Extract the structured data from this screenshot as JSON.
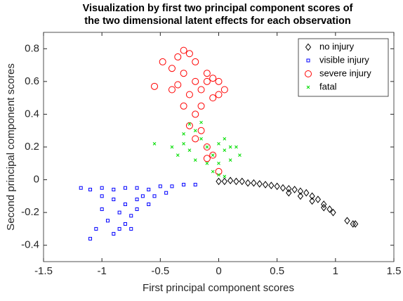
{
  "chart_data": {
    "type": "scatter",
    "title": [
      "Visualization by first two principal component scores of",
      "the two dimensional latent effects for each observation"
    ],
    "xlabel": "First principal component scores",
    "ylabel": "Second principal component scores",
    "xlim": [
      -1.5,
      1.5
    ],
    "ylim": [
      -0.5,
      0.9
    ],
    "xticks": [
      -1.5,
      -1,
      -0.5,
      0,
      0.5,
      1,
      1.5
    ],
    "yticks": [
      -0.4,
      -0.2,
      0,
      0.2,
      0.4,
      0.6,
      0.8
    ],
    "grid": false,
    "legend": "upper right",
    "series": [
      {
        "name": "no injury",
        "color": "#000000",
        "marker": "diamond",
        "x": [
          0.0,
          0.05,
          0.1,
          0.15,
          0.2,
          0.25,
          0.3,
          0.35,
          0.4,
          0.45,
          0.5,
          0.55,
          0.6,
          0.65,
          0.7,
          0.75,
          0.8,
          0.85,
          0.9,
          0.95,
          0.98,
          0.6,
          0.7,
          0.8,
          0.9,
          1.1,
          1.15,
          1.17
        ],
        "y": [
          -0.01,
          -0.01,
          -0.005,
          -0.01,
          -0.01,
          -0.02,
          -0.02,
          -0.025,
          -0.03,
          -0.035,
          -0.04,
          -0.05,
          -0.055,
          -0.06,
          -0.07,
          -0.08,
          -0.1,
          -0.12,
          -0.15,
          -0.18,
          -0.2,
          -0.08,
          -0.1,
          -0.13,
          -0.17,
          -0.25,
          -0.27,
          -0.27
        ]
      },
      {
        "name": "visible injury",
        "color": "#0000ff",
        "marker": "square",
        "x": [
          -1.18,
          -1.1,
          -1.0,
          -0.9,
          -0.8,
          -0.7,
          -0.6,
          -0.5,
          -0.4,
          -0.3,
          -1.0,
          -0.9,
          -0.8,
          -0.7,
          -0.85,
          -0.75,
          -0.95,
          -0.8,
          -0.85,
          -0.9,
          -1.1,
          -1.05,
          -0.7,
          -0.65,
          -0.6,
          -0.55,
          -0.45,
          -0.2,
          -1.0,
          -0.75
        ],
        "y": [
          -0.05,
          -0.06,
          -0.05,
          -0.06,
          -0.05,
          -0.05,
          -0.06,
          -0.04,
          -0.04,
          -0.03,
          -0.1,
          -0.12,
          -0.15,
          -0.12,
          -0.2,
          -0.22,
          -0.25,
          -0.27,
          -0.3,
          -0.33,
          -0.36,
          -0.3,
          -0.18,
          -0.1,
          -0.15,
          -0.1,
          -0.08,
          -0.03,
          -0.18,
          -0.3
        ]
      },
      {
        "name": "severe injury",
        "color": "#ff0000",
        "marker": "circle",
        "x": [
          -0.55,
          -0.48,
          -0.4,
          -0.35,
          -0.3,
          -0.25,
          -0.2,
          -0.3,
          -0.2,
          -0.35,
          -0.25,
          -0.15,
          -0.1,
          -0.05,
          0.0,
          0.05,
          -0.05,
          -0.1,
          -0.15,
          -0.2,
          -0.25,
          -0.2,
          -0.15,
          -0.1,
          -0.05,
          -0.1,
          0.0,
          -0.3,
          -0.4,
          0.0
        ],
        "y": [
          0.57,
          0.72,
          0.68,
          0.75,
          0.79,
          0.77,
          0.72,
          0.65,
          0.6,
          0.58,
          0.52,
          0.55,
          0.6,
          0.62,
          0.6,
          0.55,
          0.5,
          0.65,
          0.45,
          0.4,
          0.33,
          0.25,
          0.3,
          0.2,
          0.15,
          0.13,
          0.05,
          0.45,
          0.55,
          0.52
        ]
      },
      {
        "name": "fatal",
        "color": "#00dd00",
        "marker": "x",
        "x": [
          -0.55,
          -0.4,
          -0.3,
          -0.25,
          -0.2,
          -0.35,
          -0.25,
          -0.15,
          -0.1,
          -0.05,
          0.0,
          0.05,
          0.1,
          0.15,
          0.18,
          0.0,
          -0.05,
          0.0,
          0.05,
          -0.1,
          -0.3,
          -0.2,
          0.1,
          -0.15,
          0.05
        ],
        "y": [
          0.22,
          0.2,
          0.28,
          0.34,
          0.3,
          0.15,
          0.18,
          0.25,
          0.2,
          0.15,
          0.22,
          0.25,
          0.2,
          0.2,
          0.15,
          0.1,
          0.05,
          0.03,
          0.02,
          0.1,
          0.22,
          0.12,
          0.12,
          0.35,
          0.18
        ]
      }
    ]
  }
}
